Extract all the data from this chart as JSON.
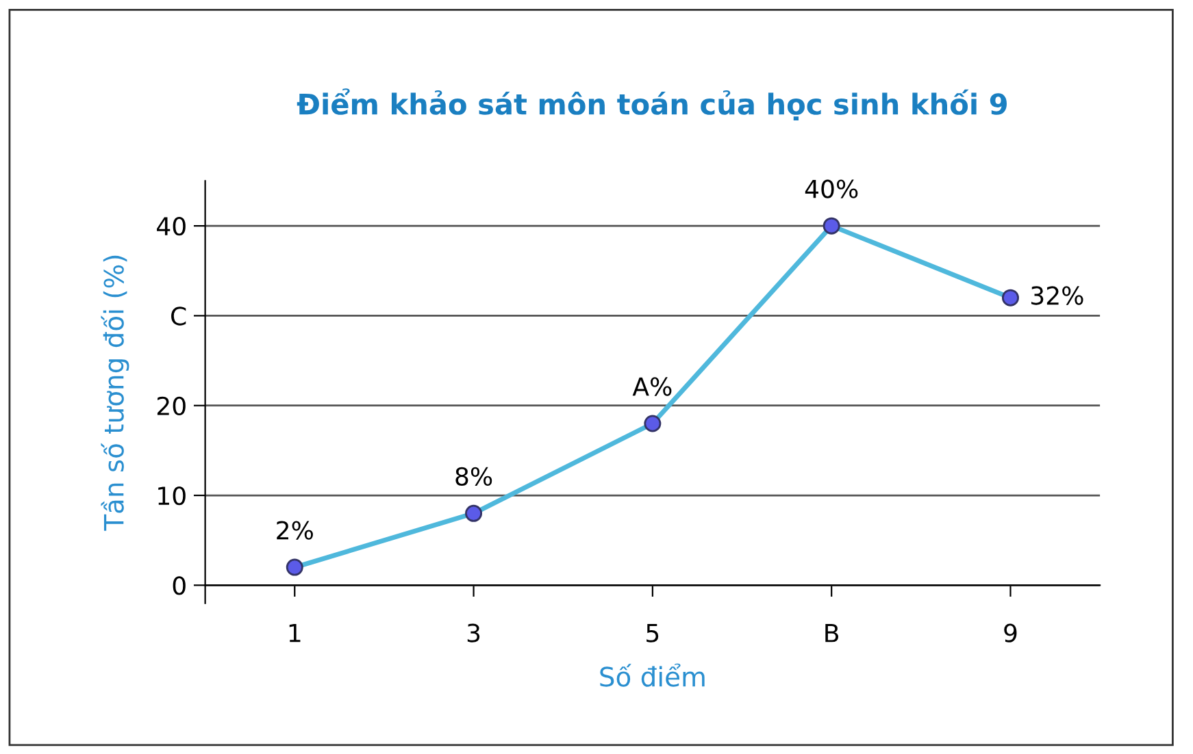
{
  "chart_data": {
    "type": "line",
    "title": "Điểm khảo sát môn toán của học sinh khối 9",
    "xlabel": "Số điểm",
    "ylabel": "Tần số tương đối (%)",
    "categories": [
      "1",
      "3",
      "5",
      "B",
      "9"
    ],
    "series": [
      {
        "color": "#4fb8dc",
        "values": [
          2,
          8,
          18,
          40,
          32
        ],
        "value_labels": [
          "2%",
          "8%",
          "A%",
          "40%",
          "32%"
        ]
      }
    ],
    "ylim": [
      -2,
      45
    ],
    "yticks": [
      0,
      10,
      20,
      {
        "value": 30,
        "label": "C"
      },
      40
    ],
    "grid": "y",
    "marker": "circle",
    "line_style": "solid"
  }
}
